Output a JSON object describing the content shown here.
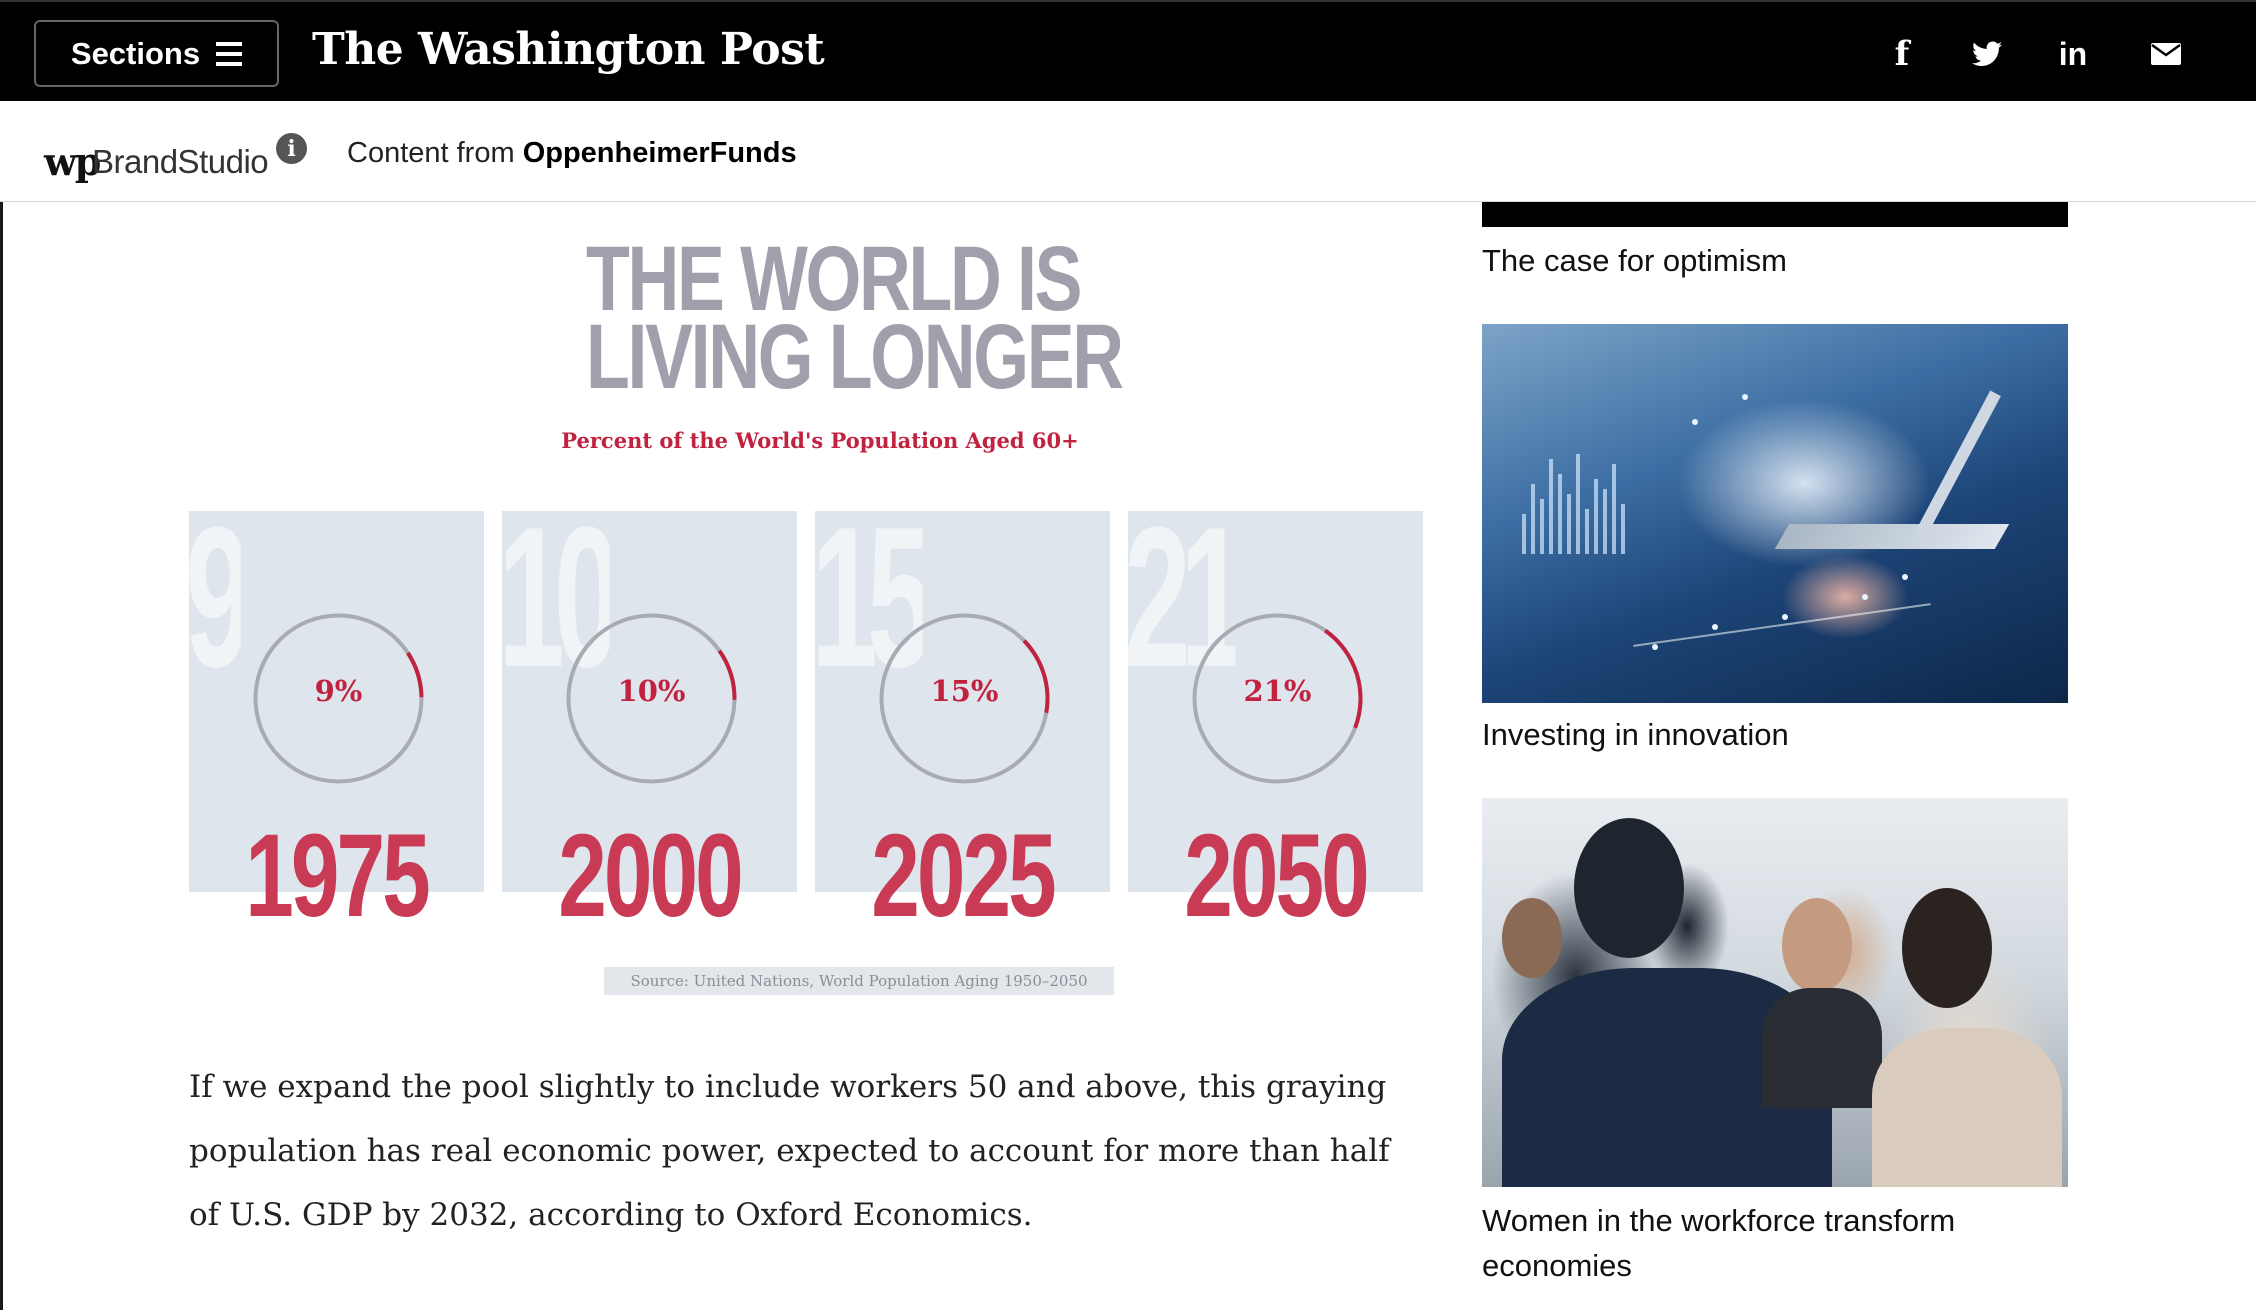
{
  "header": {
    "sections_label": "Sections",
    "masthead": "The Washington Post",
    "social": [
      {
        "name": "facebook-icon",
        "glyph": "f"
      },
      {
        "name": "twitter-icon",
        "glyph": "twitter"
      },
      {
        "name": "linkedin-icon",
        "glyph": "in"
      },
      {
        "name": "email-icon",
        "glyph": "envelope"
      }
    ]
  },
  "brandbar": {
    "logo_text": "wp",
    "brand_name": "BrandStudio",
    "content_prefix": "Content from ",
    "sponsor": "OppenheimerFunds"
  },
  "infographic": {
    "title_line1": "THE WORLD IS",
    "title_line2": "LIVING LONGER",
    "subtitle": "Percent of the World's Population Aged 60+",
    "items": [
      {
        "year": "1975",
        "percent_label": "9%",
        "percent": 9,
        "bg_number": "9"
      },
      {
        "year": "2000",
        "percent_label": "10%",
        "percent": 10,
        "bg_number": "10"
      },
      {
        "year": "2025",
        "percent_label": "15%",
        "percent": 15,
        "bg_number": "15"
      },
      {
        "year": "2050",
        "percent_label": "21%",
        "percent": 21,
        "bg_number": "21"
      }
    ],
    "source": "Source: United Nations, World Population Aging 1950–2050",
    "colors": {
      "accent": "#c1223f",
      "panel": "#dfe5ec",
      "title": "#9fa0ab",
      "ring": "#a9abb3"
    }
  },
  "article": {
    "paragraph": "If we expand the pool slightly to include workers 50 and above, this graying population has real economic power, expected to account for more than half of U.S. GDP by 2032, according to Oxford Economics."
  },
  "rail": {
    "items": [
      {
        "caption": "The case for optimism"
      },
      {
        "caption": "Investing in innovation"
      },
      {
        "caption": "Women in the workforce transform economies"
      }
    ]
  }
}
